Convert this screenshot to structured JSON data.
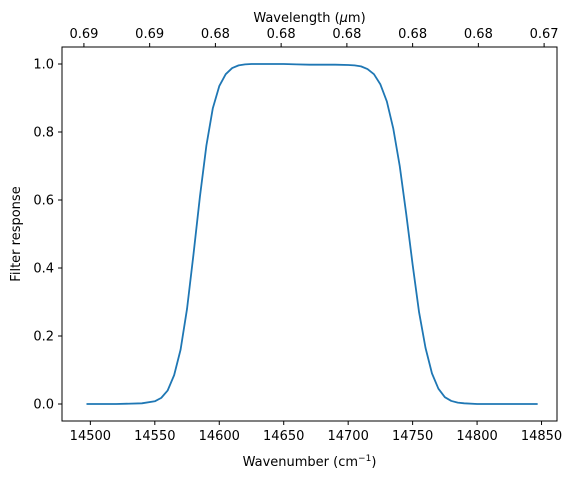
{
  "chart_data": {
    "type": "line",
    "title": "",
    "xlabel": "Wavenumber (cm",
    "xlabel_sup": "−1",
    "xlabel_suffix": ")",
    "ylabel": "Filter response",
    "top_xlabel": "Wavelength (",
    "top_xlabel_mu": "μ",
    "top_xlabel_suffix": "m)",
    "xlim": [
      14478,
      14862
    ],
    "ylim": [
      -0.05,
      1.05
    ],
    "x_ticks": [
      14500,
      14550,
      14600,
      14650,
      14700,
      14750,
      14800,
      14850
    ],
    "x_tick_labels": [
      "14500",
      "14550",
      "14600",
      "14650",
      "14700",
      "14750",
      "14800",
      "14850"
    ],
    "y_ticks": [
      0.0,
      0.2,
      0.4,
      0.6,
      0.8,
      1.0
    ],
    "y_tick_labels": [
      "0.0",
      "0.2",
      "0.4",
      "0.6",
      "0.8",
      "1.0"
    ],
    "top_x_ticks": [
      14495,
      14546,
      14597,
      14648,
      14699,
      14750,
      14801,
      14852
    ],
    "top_x_tick_labels": [
      "0.69",
      "0.69",
      "0.68",
      "0.68",
      "0.68",
      "0.68",
      "0.68",
      "0.67"
    ],
    "grid": false,
    "series": [
      {
        "color": "#1f77b4",
        "x": [
          14497,
          14520,
          14540,
          14550,
          14555,
          14560,
          14565,
          14570,
          14575,
          14580,
          14585,
          14590,
          14595,
          14600,
          14605,
          14610,
          14615,
          14620,
          14625,
          14630,
          14640,
          14650,
          14660,
          14670,
          14680,
          14690,
          14700,
          14705,
          14710,
          14715,
          14720,
          14725,
          14730,
          14735,
          14740,
          14745,
          14750,
          14755,
          14760,
          14765,
          14770,
          14775,
          14780,
          14785,
          14790,
          14800,
          14820,
          14847
        ],
        "y": [
          0.0,
          0.0,
          0.002,
          0.008,
          0.018,
          0.04,
          0.085,
          0.16,
          0.28,
          0.44,
          0.61,
          0.76,
          0.87,
          0.935,
          0.97,
          0.988,
          0.996,
          0.999,
          1.0,
          1.0,
          1.0,
          1.0,
          0.999,
          0.998,
          0.998,
          0.998,
          0.997,
          0.996,
          0.993,
          0.985,
          0.97,
          0.94,
          0.89,
          0.81,
          0.7,
          0.56,
          0.41,
          0.27,
          0.165,
          0.09,
          0.045,
          0.02,
          0.009,
          0.004,
          0.002,
          0.0,
          0.0,
          0.0
        ]
      }
    ]
  }
}
